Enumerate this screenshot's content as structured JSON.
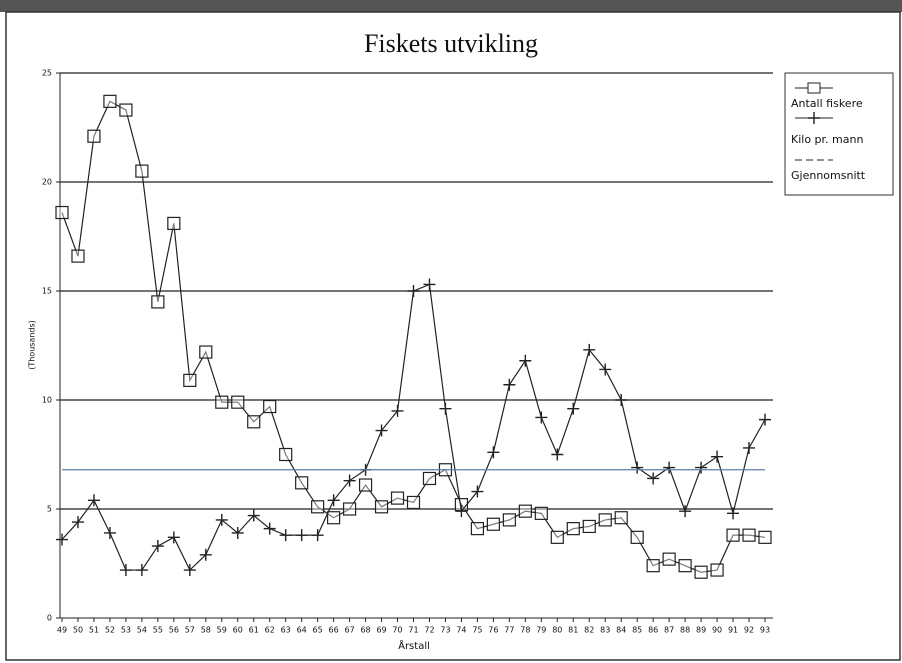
{
  "chart_data": {
    "type": "line",
    "title": "Fiskets utvikling",
    "x_label": "Årstall",
    "y_label": "(Thousands)",
    "categories": [
      "49",
      "50",
      "51",
      "52",
      "53",
      "54",
      "55",
      "56",
      "57",
      "58",
      "59",
      "60",
      "61",
      "62",
      "63",
      "64",
      "65",
      "66",
      "67",
      "68",
      "69",
      "70",
      "71",
      "72",
      "73",
      "74",
      "75",
      "76",
      "77",
      "78",
      "79",
      "80",
      "81",
      "82",
      "83",
      "84",
      "85",
      "86",
      "87",
      "88",
      "89",
      "90",
      "91",
      "92",
      "93"
    ],
    "series": [
      {
        "name": "Antall fiskere",
        "color": "#222222",
        "marker": "square",
        "values": [
          18.6,
          16.6,
          22.1,
          23.7,
          23.3,
          20.5,
          14.5,
          18.1,
          10.9,
          12.2,
          9.9,
          9.9,
          9.0,
          9.7,
          7.5,
          6.2,
          5.1,
          4.6,
          5.0,
          6.1,
          5.1,
          5.5,
          5.3,
          6.4,
          6.8,
          5.2,
          4.1,
          4.3,
          4.5,
          4.9,
          4.8,
          3.7,
          4.1,
          4.2,
          4.5,
          4.6,
          3.7,
          2.4,
          2.7,
          2.4,
          2.1,
          2.2,
          3.8,
          3.8,
          3.7
        ]
      },
      {
        "name": "Kilo pr. mann",
        "color": "#222222",
        "marker": "plus",
        "values": [
          3.6,
          4.4,
          5.4,
          3.9,
          2.2,
          2.2,
          3.3,
          3.7,
          2.2,
          2.9,
          4.5,
          3.9,
          4.7,
          4.1,
          3.8,
          3.8,
          3.8,
          5.4,
          6.3,
          6.8,
          8.6,
          9.5,
          15.0,
          15.3,
          9.6,
          4.9,
          5.8,
          7.6,
          10.7,
          11.8,
          9.2,
          7.5,
          9.6,
          12.3,
          11.4,
          10.0,
          6.9,
          6.4,
          6.9,
          4.9,
          6.9,
          7.4,
          4.8,
          7.8,
          9.1
        ]
      },
      {
        "name": "Gjennomsnitt",
        "color": "#5b7fa6",
        "marker": "dash",
        "value": 6.8
      }
    ],
    "ylim": [
      0,
      25
    ],
    "yticks": [
      0,
      5,
      10,
      15,
      20,
      25
    ],
    "grid": true,
    "legend": "right"
  }
}
